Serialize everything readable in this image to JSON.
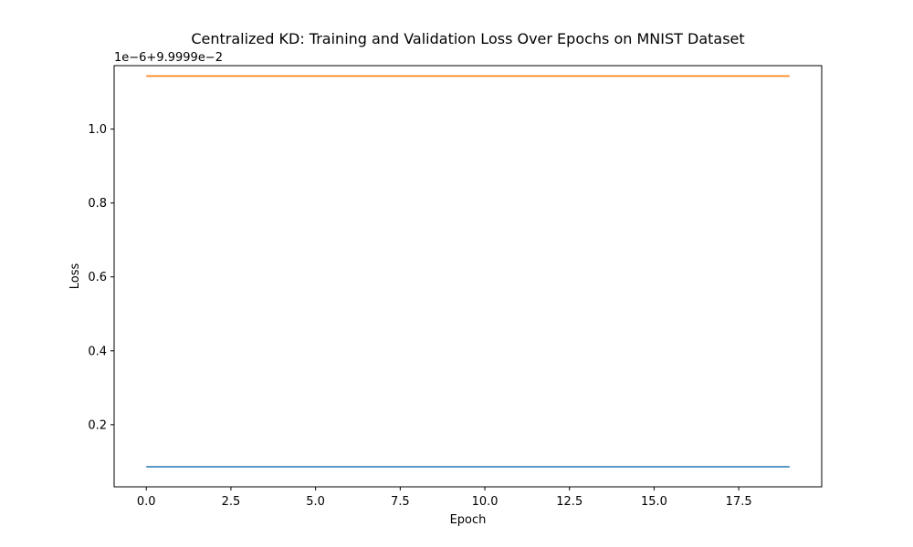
{
  "chart_data": {
    "type": "line",
    "title": "Centralized KD: Training and Validation Loss Over Epochs on MNIST Dataset",
    "xlabel": "Epoch",
    "ylabel": "Loss",
    "y_offset_label": "1e−6+9.9999e−2",
    "xlim": [
      -0.95,
      19.95
    ],
    "ylim": [
      0.0319,
      1.1717
    ],
    "x_ticks": [
      0.0,
      2.5,
      5.0,
      7.5,
      10.0,
      12.5,
      15.0,
      17.5
    ],
    "x_tick_labels": [
      "0.0",
      "2.5",
      "5.0",
      "7.5",
      "10.0",
      "12.5",
      "15.0",
      "17.5"
    ],
    "y_ticks": [
      0.2,
      0.4,
      0.6,
      0.8,
      1.0
    ],
    "y_tick_labels": [
      "0.2",
      "0.4",
      "0.6",
      "0.8",
      "1.0"
    ],
    "x": [
      0,
      1,
      2,
      3,
      4,
      5,
      6,
      7,
      8,
      9,
      10,
      11,
      12,
      13,
      14,
      15,
      16,
      17,
      18,
      19
    ],
    "series": [
      {
        "color": "#1f77b4",
        "values": [
          0.0862,
          0.0862,
          0.0862,
          0.0862,
          0.0862,
          0.0862,
          0.0862,
          0.0862,
          0.0862,
          0.0862,
          0.0862,
          0.0862,
          0.0862,
          0.0862,
          0.0862,
          0.0862,
          0.0862,
          0.0862,
          0.0862,
          0.0862
        ]
      },
      {
        "color": "#ff7f0e",
        "values": [
          1.1435,
          1.1435,
          1.1435,
          1.1435,
          1.1435,
          1.1435,
          1.1435,
          1.1435,
          1.1435,
          1.1435,
          1.1435,
          1.1435,
          1.1435,
          1.1435,
          1.1435,
          1.1435,
          1.1435,
          1.1435,
          1.1435,
          1.1435
        ]
      }
    ],
    "grid": false,
    "legend": "none"
  }
}
